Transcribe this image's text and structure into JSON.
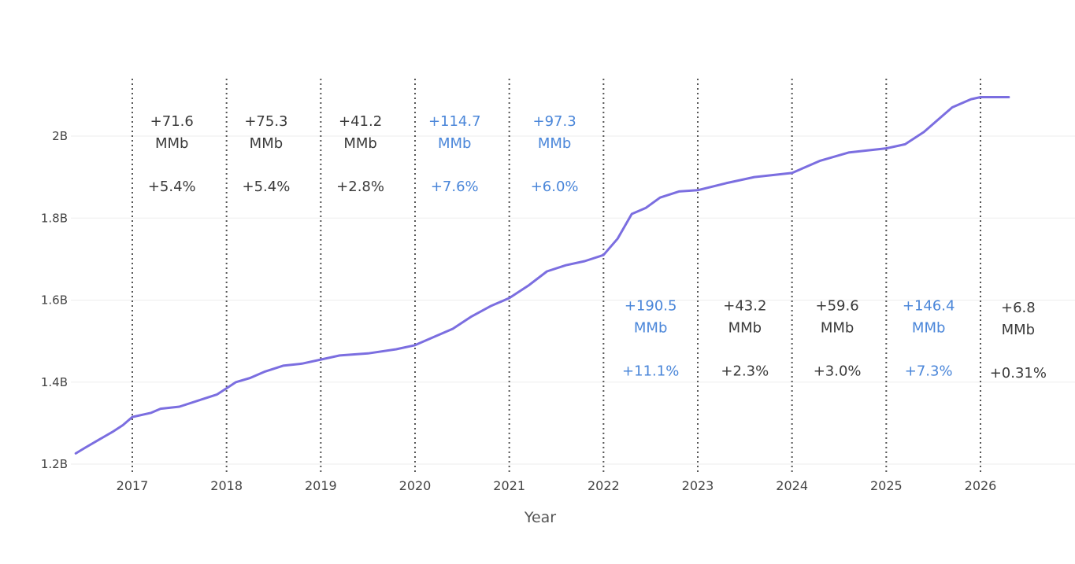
{
  "chart_data": {
    "type": "line",
    "xlabel": "Year",
    "ylabel": "",
    "xlim": [
      2016.4,
      2026.5
    ],
    "ylim": [
      1.2,
      2.12
    ],
    "grid": "horizontal",
    "line_color": "#7b6ee0",
    "yticks": [
      {
        "value": 1.2,
        "label": "1.2B"
      },
      {
        "value": 1.4,
        "label": "1.4B"
      },
      {
        "value": 1.6,
        "label": "1.6B"
      },
      {
        "value": 1.8,
        "label": "1.8B"
      },
      {
        "value": 2.0,
        "label": "2B"
      }
    ],
    "xticks": [
      {
        "value": 2017,
        "label": "2017"
      },
      {
        "value": 2018,
        "label": "2018"
      },
      {
        "value": 2019,
        "label": "2019"
      },
      {
        "value": 2020,
        "label": "2020"
      },
      {
        "value": 2021,
        "label": "2021"
      },
      {
        "value": 2022,
        "label": "2022"
      },
      {
        "value": 2023,
        "label": "2023"
      },
      {
        "value": 2024,
        "label": "2024"
      },
      {
        "value": 2025,
        "label": "2025"
      },
      {
        "value": 2026,
        "label": "2026"
      }
    ],
    "year_markers": [
      2017,
      2018,
      2019,
      2020,
      2021,
      2022,
      2023,
      2024,
      2025,
      2026
    ],
    "series": [
      {
        "x": [
          2016.4,
          2016.5,
          2016.65,
          2016.8,
          2016.9,
          2017.0,
          2017.2,
          2017.3,
          2017.5,
          2017.7,
          2017.9,
          2018.0,
          2018.1,
          2018.25,
          2018.4,
          2018.6,
          2018.8,
          2019.0,
          2019.2,
          2019.5,
          2019.8,
          2020.0,
          2020.2,
          2020.4,
          2020.6,
          2020.8,
          2021.0,
          2021.2,
          2021.4,
          2021.6,
          2021.8,
          2022.0,
          2022.15,
          2022.3,
          2022.45,
          2022.6,
          2022.8,
          2023.0,
          2023.3,
          2023.6,
          2024.0,
          2024.3,
          2024.6,
          2025.0,
          2025.2,
          2025.4,
          2025.55,
          2025.7,
          2025.9,
          2026.0,
          2026.3
        ],
        "y": [
          1.226,
          1.24,
          1.26,
          1.28,
          1.295,
          1.315,
          1.325,
          1.335,
          1.34,
          1.355,
          1.37,
          1.385,
          1.4,
          1.41,
          1.425,
          1.44,
          1.445,
          1.455,
          1.465,
          1.47,
          1.48,
          1.49,
          1.51,
          1.53,
          1.56,
          1.585,
          1.605,
          1.635,
          1.67,
          1.685,
          1.695,
          1.71,
          1.75,
          1.81,
          1.825,
          1.85,
          1.865,
          1.868,
          1.885,
          1.9,
          1.91,
          1.94,
          1.96,
          1.97,
          1.98,
          2.01,
          2.04,
          2.07,
          2.09,
          2.095,
          2.095
        ]
      }
    ],
    "annotations": [
      {
        "x": 2017.42,
        "y": 2.025,
        "lines": [
          "+71.6",
          "MMb"
        ],
        "pct": "+5.4%",
        "color": "#3a3a3a"
      },
      {
        "x": 2018.42,
        "y": 2.025,
        "lines": [
          "+75.3",
          "MMb"
        ],
        "pct": "+5.4%",
        "color": "#3a3a3a"
      },
      {
        "x": 2019.42,
        "y": 2.025,
        "lines": [
          "+41.2",
          "MMb"
        ],
        "pct": "+2.8%",
        "color": "#3a3a3a"
      },
      {
        "x": 2020.42,
        "y": 2.025,
        "lines": [
          "+114.7",
          "MMb"
        ],
        "pct": "+7.6%",
        "color": "#4a86d9"
      },
      {
        "x": 2021.48,
        "y": 2.025,
        "lines": [
          "+97.3",
          "MMb"
        ],
        "pct": "+6.0%",
        "color": "#4a86d9"
      },
      {
        "x": 2022.5,
        "y": 1.575,
        "lines": [
          "+190.5",
          "MMb"
        ],
        "pct": "+11.1%",
        "color": "#4a86d9"
      },
      {
        "x": 2023.5,
        "y": 1.575,
        "lines": [
          "+43.2",
          "MMb"
        ],
        "pct": "+2.3%",
        "color": "#3a3a3a"
      },
      {
        "x": 2024.48,
        "y": 1.575,
        "lines": [
          "+59.6",
          "MMb"
        ],
        "pct": "+3.0%",
        "color": "#3a3a3a"
      },
      {
        "x": 2025.45,
        "y": 1.575,
        "lines": [
          "+146.4",
          "MMb"
        ],
        "pct": "+7.3%",
        "color": "#4a86d9"
      },
      {
        "x": 2026.4,
        "y": 1.57,
        "lines": [
          "+6.8",
          "MMb"
        ],
        "pct": "+0.31%",
        "color": "#3a3a3a"
      }
    ]
  }
}
